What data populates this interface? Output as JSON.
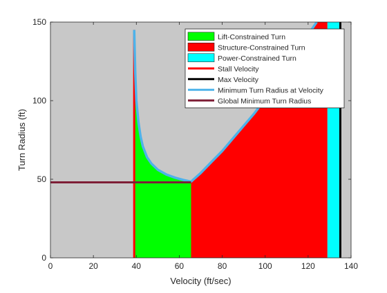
{
  "chart_data": {
    "type": "area",
    "xlabel": "Velocity (ft/sec)",
    "ylabel": "Turn Radius (ft)",
    "xlim": [
      0,
      140
    ],
    "ylim": [
      0,
      150
    ],
    "xticks": [
      "0",
      "20",
      "40",
      "60",
      "80",
      "100",
      "120",
      "140"
    ],
    "yticks": [
      "0",
      "50",
      "100",
      "150"
    ],
    "legend_position": "top-right",
    "background_color": "#c8c8c8",
    "regions": [
      {
        "name": "Lift-Constrained Turn",
        "color": "#00ff00",
        "x_range": [
          39,
          65.5
        ],
        "lower": 0,
        "upper_curve": [
          [
            39,
            145
          ],
          [
            39.5,
            118
          ],
          [
            40,
            100
          ],
          [
            41,
            86
          ],
          [
            42,
            77
          ],
          [
            43,
            71
          ],
          [
            45,
            64
          ],
          [
            47,
            60
          ],
          [
            50,
            56
          ],
          [
            54,
            53
          ],
          [
            58,
            51
          ],
          [
            62,
            49.5
          ],
          [
            65.5,
            48.5
          ]
        ]
      },
      {
        "name": "Structure-Constrained Turn",
        "color": "#ff0000",
        "x_range": [
          65.5,
          129
        ],
        "lower": 0,
        "upper_curve": [
          [
            65.5,
            48.5
          ],
          [
            70,
            54
          ],
          [
            75,
            61
          ],
          [
            80,
            68
          ],
          [
            85,
            76
          ],
          [
            90,
            84
          ],
          [
            95,
            92
          ],
          [
            100,
            101
          ],
          [
            105,
            110
          ],
          [
            110,
            120
          ],
          [
            115,
            131
          ],
          [
            120,
            142
          ],
          [
            124,
            150
          ],
          [
            129,
            150
          ]
        ]
      },
      {
        "name": "Power-Constrained Turn",
        "color": "#00ffff",
        "x_range": [
          129,
          134.5
        ],
        "lower": 0,
        "upper": 150
      }
    ],
    "lines": [
      {
        "name": "Stall Velocity",
        "color": "#ff0000",
        "type": "vertical",
        "x": 39,
        "y_range": [
          0,
          145
        ]
      },
      {
        "name": "Max Velocity",
        "color": "#000000",
        "type": "vertical",
        "x": 135,
        "y_range": [
          0,
          150
        ]
      },
      {
        "name": "Minimum Turn Radius at Velocity",
        "color": "#4db3ea",
        "type": "curve",
        "points": [
          [
            39,
            145
          ],
          [
            39.5,
            118
          ],
          [
            40,
            100
          ],
          [
            41,
            86
          ],
          [
            42,
            77
          ],
          [
            43,
            71
          ],
          [
            45,
            64
          ],
          [
            47,
            60
          ],
          [
            50,
            56
          ],
          [
            54,
            53
          ],
          [
            58,
            51
          ],
          [
            62,
            49.5
          ],
          [
            65.5,
            48.5
          ],
          [
            70,
            54
          ],
          [
            75,
            61
          ],
          [
            80,
            68
          ],
          [
            85,
            76
          ],
          [
            90,
            84
          ],
          [
            95,
            92
          ],
          [
            100,
            101
          ],
          [
            105,
            110
          ],
          [
            110,
            120
          ],
          [
            115,
            131
          ],
          [
            120,
            142
          ],
          [
            124,
            150
          ]
        ]
      },
      {
        "name": "Global Minimum Turn Radius",
        "color": "#7e1e36",
        "type": "horizontal",
        "y": 48,
        "x_range": [
          0,
          65.5
        ]
      }
    ],
    "legend": [
      {
        "label": "Lift-Constrained Turn",
        "kind": "patch",
        "color": "#00ff00"
      },
      {
        "label": "Structure-Constrained Turn",
        "kind": "patch",
        "color": "#ff0000"
      },
      {
        "label": "Power-Constrained Turn",
        "kind": "patch",
        "color": "#00ffff"
      },
      {
        "label": "Stall Velocity",
        "kind": "line",
        "color": "#ff0000"
      },
      {
        "label": "Max Velocity",
        "kind": "line",
        "color": "#000000"
      },
      {
        "label": "Minimum Turn Radius at Velocity",
        "kind": "line",
        "color": "#4db3ea"
      },
      {
        "label": "Global Minimum Turn Radius",
        "kind": "line",
        "color": "#7e1e36"
      }
    ]
  }
}
